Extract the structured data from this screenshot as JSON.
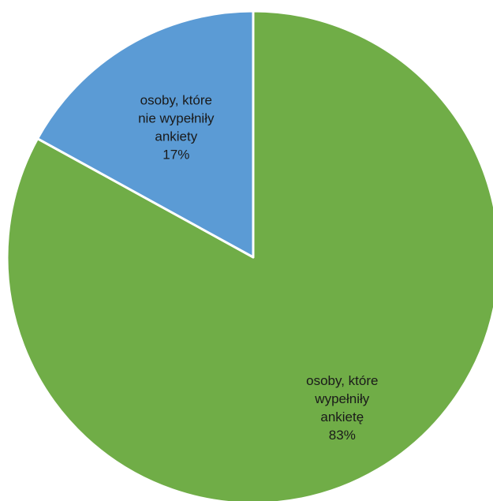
{
  "chart_data": {
    "type": "pie",
    "title": "",
    "start_angle_deg": 0,
    "direction": "clockwise",
    "slices": [
      {
        "label": "osoby, które wypełniły ankietę",
        "label_lines": [
          "osoby, które",
          "wypełniły",
          "ankietę"
        ],
        "value": 83,
        "value_label": "83%",
        "color": "#70ad47"
      },
      {
        "label": "osoby, które nie wypełniły ankiety",
        "label_lines": [
          "osoby, które",
          "nie wypełniły",
          "ankiety"
        ],
        "value": 17,
        "value_label": "17%",
        "color": "#5b9bd5"
      }
    ],
    "legend": "none",
    "data_labels": "inside"
  }
}
